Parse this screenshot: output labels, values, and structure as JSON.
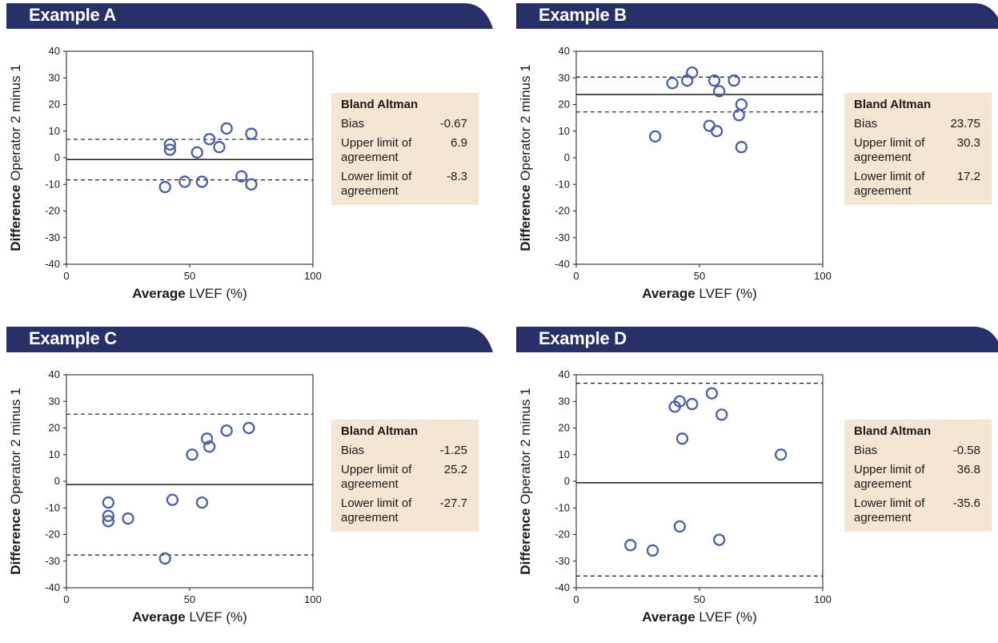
{
  "theme": {
    "banner_color": "#283069",
    "marker_color": "#4a5fa8",
    "stats_bg": "#f5e6d3"
  },
  "stats_header": "Bland Altman",
  "stats_labels": {
    "bias": "Bias",
    "upper": "Upper limit of agreement",
    "lower": "Lower limit of agreement"
  },
  "panels": [
    {
      "title": "Example A",
      "stats": {
        "bias": "-0.67",
        "upper": "6.9",
        "lower": "-8.3"
      }
    },
    {
      "title": "Example B",
      "stats": {
        "bias": "23.75",
        "upper": "30.3",
        "lower": "17.2"
      }
    },
    {
      "title": "Example C",
      "stats": {
        "bias": "-1.25",
        "upper": "25.2",
        "lower": "-27.7"
      }
    },
    {
      "title": "Example D",
      "stats": {
        "bias": "-0.58",
        "upper": "36.8",
        "lower": "-35.6"
      }
    }
  ],
  "chart_data": [
    {
      "type": "scatter",
      "title": "Example A",
      "xlabel_bold": "Average",
      "xlabel_rest": "LVEF (%)",
      "ylabel_bold": "Difference",
      "ylabel_rest": "Operator 2 minus 1",
      "xlim": [
        0,
        100
      ],
      "ylim": [
        -40,
        40
      ],
      "xticks": [
        0,
        50,
        100
      ],
      "yticks": [
        40,
        30,
        20,
        10,
        0,
        -10,
        -20,
        -30,
        -40
      ],
      "bias": -0.67,
      "upper": 6.9,
      "lower": -8.3,
      "x": [
        40,
        42,
        42,
        48,
        53,
        55,
        58,
        62,
        65,
        71,
        75,
        75
      ],
      "y": [
        -11,
        5,
        3,
        -9,
        2,
        -9,
        7,
        4,
        11,
        -7,
        9,
        -10
      ]
    },
    {
      "type": "scatter",
      "title": "Example B",
      "xlabel_bold": "Average",
      "xlabel_rest": "LVEF (%)",
      "ylabel_bold": "Difference",
      "ylabel_rest": "Operator 2 minus 1",
      "xlim": [
        0,
        100
      ],
      "ylim": [
        -40,
        40
      ],
      "xticks": [
        0,
        50,
        100
      ],
      "yticks": [
        40,
        30,
        20,
        10,
        0,
        -10,
        -20,
        -30,
        -40
      ],
      "bias": 23.75,
      "upper": 30.3,
      "lower": 17.2,
      "x": [
        32,
        39,
        45,
        47,
        54,
        56,
        57,
        58,
        64,
        66,
        67,
        67
      ],
      "y": [
        8,
        28,
        29,
        32,
        12,
        29,
        10,
        25,
        29,
        16,
        4,
        20
      ]
    },
    {
      "type": "scatter",
      "title": "Example C",
      "xlabel_bold": "Average",
      "xlabel_rest": "LVEF (%)",
      "ylabel_bold": "Difference",
      "ylabel_rest": "Operator 2 minus 1",
      "xlim": [
        0,
        100
      ],
      "ylim": [
        -40,
        40
      ],
      "xticks": [
        0,
        50,
        100
      ],
      "yticks": [
        40,
        30,
        20,
        10,
        0,
        -10,
        -20,
        -30,
        -40
      ],
      "bias": -1.25,
      "upper": 25.2,
      "lower": -27.7,
      "x": [
        17,
        17,
        17,
        25,
        40,
        43,
        51,
        55,
        57,
        58,
        65,
        74
      ],
      "y": [
        -8,
        -13,
        -15,
        -14,
        -29,
        -7,
        10,
        -8,
        16,
        13,
        19,
        20
      ]
    },
    {
      "type": "scatter",
      "title": "Example D",
      "xlabel_bold": "Average",
      "xlabel_rest": "LVEF (%)",
      "ylabel_bold": "Difference",
      "ylabel_rest": "Operator 2 minus 1",
      "xlim": [
        0,
        100
      ],
      "ylim": [
        -40,
        40
      ],
      "xticks": [
        0,
        50,
        100
      ],
      "yticks": [
        40,
        30,
        20,
        10,
        0,
        -10,
        -20,
        -30,
        -40
      ],
      "bias": -0.58,
      "upper": 36.8,
      "lower": -35.6,
      "x": [
        22,
        31,
        40,
        42,
        42,
        43,
        47,
        55,
        58,
        59,
        83
      ],
      "y": [
        -24,
        -26,
        28,
        30,
        -17,
        16,
        29,
        33,
        -22,
        25,
        10
      ]
    }
  ]
}
